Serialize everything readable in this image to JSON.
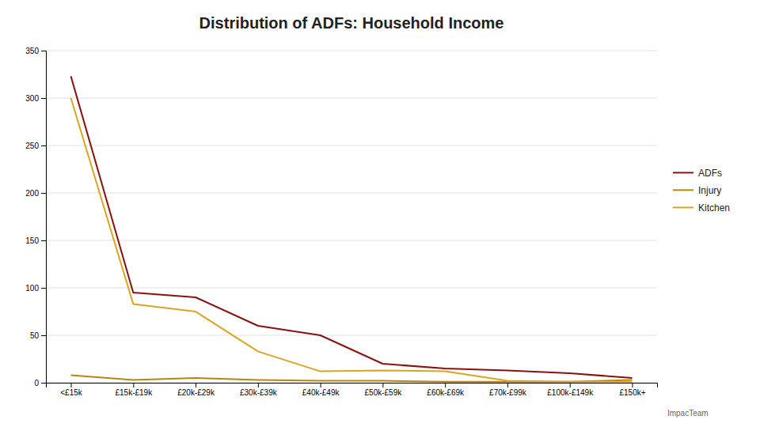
{
  "chart_data": {
    "type": "line",
    "title": "Distribution of ADFs: Household Income",
    "categories": [
      "<£15k",
      "£15k-£19k",
      "£20k-£29k",
      "£30k-£39k",
      "£40k-£49k",
      "£50k-£59k",
      "£60k-£69k",
      "£70k-£99k",
      "£100k-£149k",
      "£150k+"
    ],
    "series": [
      {
        "name": "ADFs",
        "color": "#8B1010",
        "values": [
          323,
          95,
          90,
          60,
          50,
          20,
          15,
          13,
          10,
          5
        ]
      },
      {
        "name": "Injury",
        "color": "#B8860B",
        "values": [
          8,
          3,
          5,
          3,
          2,
          2,
          1,
          1,
          1,
          3
        ]
      },
      {
        "name": "Kitchen",
        "color": "#DAA520",
        "values": [
          300,
          83,
          75,
          33,
          12,
          13,
          12,
          2,
          1,
          1
        ]
      }
    ],
    "ylim": [
      0,
      350
    ],
    "yticks": [
      0,
      50,
      100,
      150,
      200,
      250,
      300,
      350
    ],
    "grid": true,
    "legend": "right",
    "annotations": [
      "ImpacTeam"
    ]
  }
}
